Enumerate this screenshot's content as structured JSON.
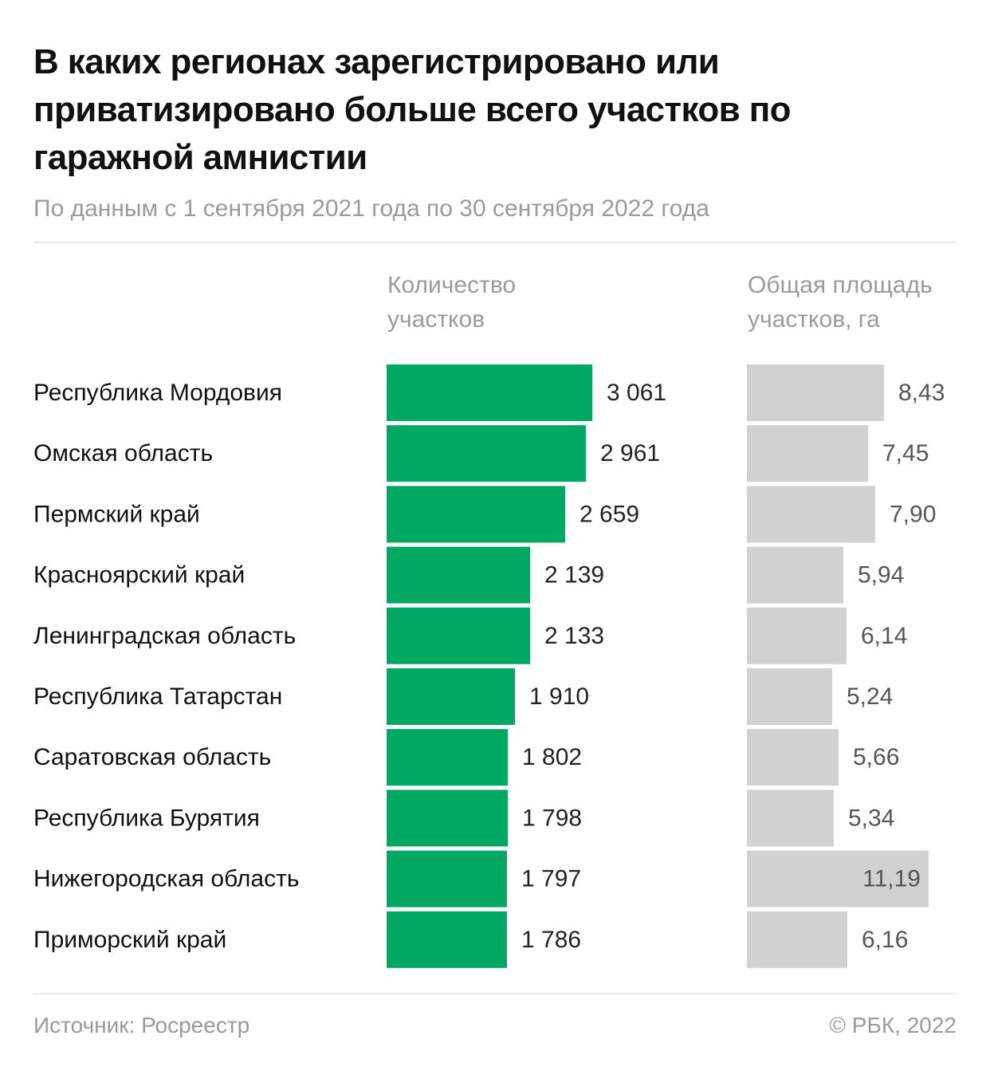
{
  "title": "В каких регионах зарегистрировано или приватизировано больше всего участков по гаражной амнистии",
  "subtitle": "По данным с 1 сентября 2021 года по 30 сентября 2022 года",
  "footer": {
    "source": "Источник: Росреестр",
    "copyright": "© РБК, 2022"
  },
  "chart_data": {
    "type": "bar",
    "orientation": "horizontal",
    "categories": [
      "Республика Мордовия",
      "Омская область",
      "Пермский край",
      "Красноярский край",
      "Ленинградская область",
      "Республика Татарстан",
      "Саратовская область",
      "Республика Бурятия",
      "Нижегородская область",
      "Приморский край"
    ],
    "series": [
      {
        "name": "Количество участков",
        "values": [
          3061,
          2961,
          2659,
          2139,
          2133,
          1910,
          1802,
          1798,
          1797,
          1786
        ],
        "labels": [
          "3 061",
          "2 961",
          "2 659",
          "2 139",
          "2 133",
          "1 910",
          "1 802",
          "1 798",
          "1 797",
          "1 786"
        ],
        "color": "#00a864",
        "xlim": [
          0,
          3061
        ]
      },
      {
        "name": "Общая площадь участков, га",
        "values": [
          8.43,
          7.45,
          7.9,
          5.94,
          6.14,
          5.24,
          5.66,
          5.34,
          11.19,
          6.16
        ],
        "labels": [
          "8,43",
          "7,45",
          "7,90",
          "5,94",
          "6,14",
          "5,24",
          "5,66",
          "5,34",
          "11,19",
          "6,16"
        ],
        "color": "#d1d1d1",
        "xlim": [
          0,
          11.19
        ]
      }
    ]
  }
}
